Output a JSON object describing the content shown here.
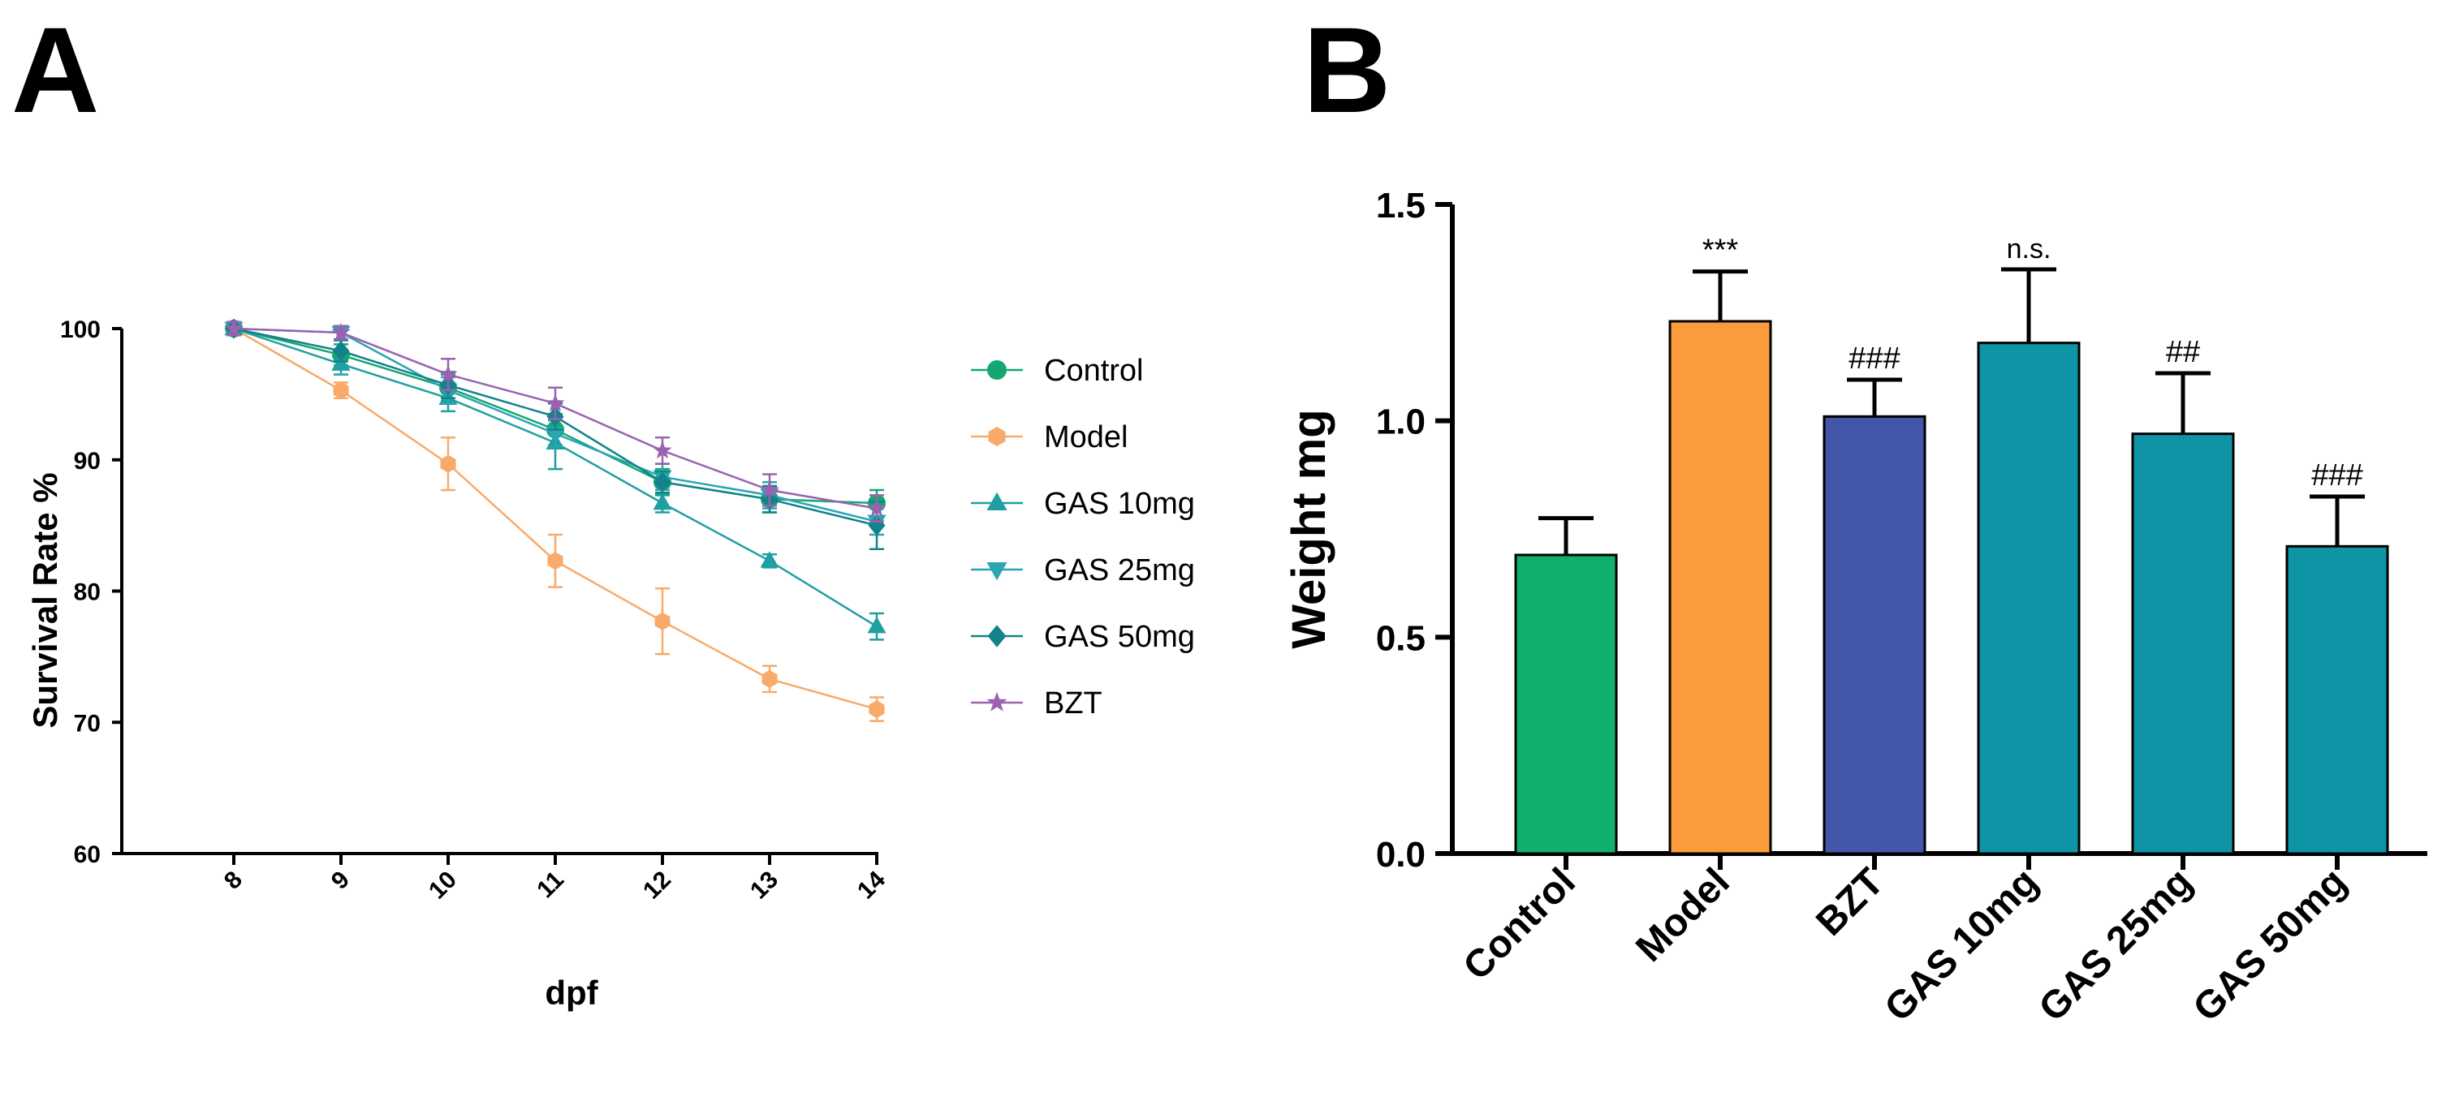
{
  "panels": {
    "a_label": "A",
    "b_label": "B"
  },
  "colors": {
    "control": "#13a772",
    "model": "#f8aa6a",
    "gas10": "#1f9fa3",
    "gas25": "#2aa5b4",
    "gas50": "#12838a",
    "bzt": "#9a62b0",
    "bar_control": "#10b06d",
    "bar_model": "#fb9b3c",
    "bar_bzt": "#4456a8",
    "bar_gas": "#0f94a6"
  },
  "chart_data": [
    {
      "type": "line",
      "title": "",
      "xlabel": "dpf",
      "ylabel": "Survival Rate %",
      "x": [
        8,
        9,
        10,
        11,
        12,
        13,
        14
      ],
      "ylim": [
        60,
        100
      ],
      "yticks": [
        60,
        70,
        80,
        90,
        100
      ],
      "legend_position": "right",
      "series": [
        {
          "name": "Control",
          "marker": "circle",
          "color_key": "control",
          "values": [
            100,
            98,
            95.5,
            92.3,
            88.3,
            87,
            86.7
          ],
          "errors": [
            0.5,
            0.8,
            1.0,
            1.2,
            1.0,
            1.0,
            1.0
          ]
        },
        {
          "name": "Model",
          "marker": "hexagon",
          "color_key": "model",
          "values": [
            100,
            95.3,
            89.7,
            82.3,
            77.7,
            73.3,
            71
          ],
          "errors": [
            0.5,
            0.6,
            2.0,
            2.0,
            2.5,
            1.0,
            0.9
          ]
        },
        {
          "name": "GAS 10mg",
          "marker": "triangle-up",
          "color_key": "gas10",
          "values": [
            100,
            97.3,
            94.7,
            91.3,
            86.7,
            82.3,
            77.3
          ],
          "errors": [
            0.5,
            0.8,
            1.0,
            2.0,
            0.7,
            0.5,
            1.0
          ]
        },
        {
          "name": "GAS 25mg",
          "marker": "triangle-down",
          "color_key": "gas25",
          "values": [
            100,
            99.7,
            95.3,
            92,
            88.7,
            87.3,
            85.3
          ],
          "errors": [
            0.5,
            0.5,
            1.0,
            1.0,
            1.0,
            1.0,
            1.0
          ]
        },
        {
          "name": "GAS 50mg",
          "marker": "diamond",
          "color_key": "gas50",
          "values": [
            100,
            98.3,
            95.7,
            93.3,
            88.3,
            87,
            85
          ],
          "errors": [
            0.5,
            0.8,
            1.0,
            1.0,
            0.8,
            1.0,
            1.8
          ]
        },
        {
          "name": "BZT",
          "marker": "star",
          "color_key": "bzt",
          "values": [
            100,
            99.7,
            96.5,
            94.3,
            90.7,
            87.7,
            86.3
          ],
          "errors": [
            0.5,
            0.5,
            1.2,
            1.2,
            1.0,
            1.2,
            1.0
          ]
        }
      ]
    },
    {
      "type": "bar",
      "title": "",
      "xlabel": "",
      "ylabel": "Weight mg",
      "categories": [
        "Control",
        "Model",
        "BZT",
        "GAS 10mg",
        "GAS 25mg",
        "GAS 50mg"
      ],
      "values": [
        0.69,
        1.23,
        1.01,
        1.18,
        0.97,
        0.71
      ],
      "errors": [
        0.085,
        0.115,
        0.085,
        0.17,
        0.14,
        0.115
      ],
      "annotations": [
        "",
        "***",
        "###",
        "n.s.",
        "##",
        "###"
      ],
      "bar_color_keys": [
        "bar_control",
        "bar_model",
        "bar_bzt",
        "bar_gas",
        "bar_gas",
        "bar_gas"
      ],
      "ylim": [
        0,
        1.5
      ],
      "yticks": [
        "0.0",
        "0.5",
        "1.0",
        "1.5"
      ]
    }
  ]
}
